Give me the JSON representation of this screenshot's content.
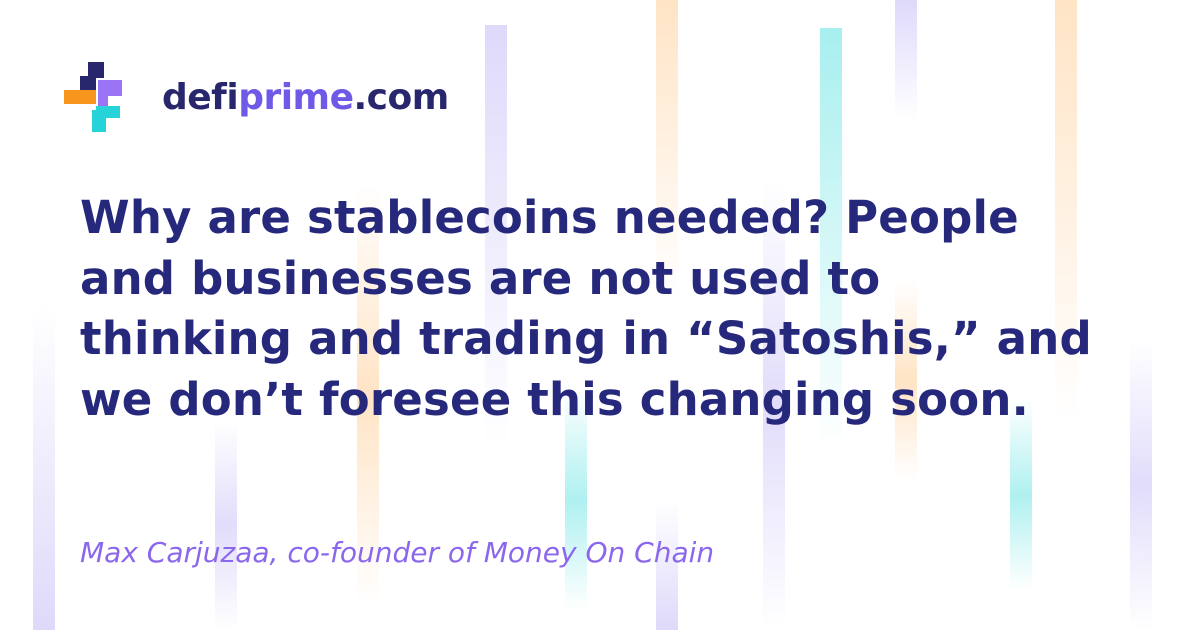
{
  "brand": {
    "name_part1": "defi",
    "name_part2": "prime",
    "name_part3": ".com",
    "colors": {
      "navy": "#28276e",
      "purple": "#6f5ae8",
      "orange": "#f7951d",
      "cyan": "#26d3d9",
      "violet": "#9a74f5"
    },
    "logo_icon": "plus-cross-logo-icon"
  },
  "quote": {
    "lines": [
      "Why are stablecoins needed? People",
      "and businesses are not used to",
      "thinking and trading in “Satoshis,” and",
      "we don’t foresee this changing soon."
    ]
  },
  "attribution": {
    "text": "Max Carjuzaa, co-founder of Money On Chain"
  }
}
